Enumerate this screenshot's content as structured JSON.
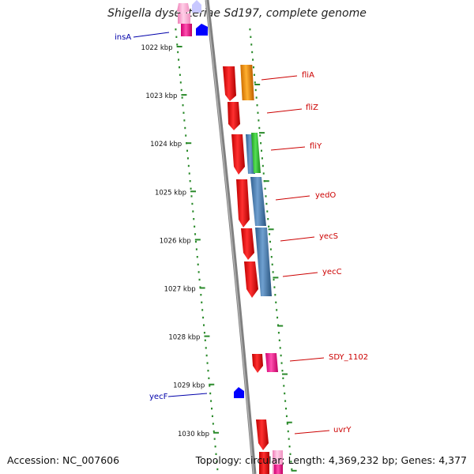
{
  "title": "Shigella dysenteriae Sd197, complete genome",
  "accession": "Accession: NC_007606",
  "topology": "Topology: circular; Length: 4,369,232 bp; Genes: 4,377",
  "ticks": [
    "1022 kbp",
    "1023 kbp",
    "1024 kbp",
    "1025 kbp",
    "1026 kbp",
    "1027 kbp",
    "1028 kbp",
    "1029 kbp",
    "1030 kbp"
  ],
  "gene_labels": {
    "insA": "insA",
    "fliA": "fliA",
    "fliZ": "fliZ",
    "fliY": "fliY",
    "yedO": "yedO",
    "yecS": "yecS",
    "yecC": "yecC",
    "SDY_1102": "SDY_1102",
    "yecF": "yecF",
    "uvrY": "uvrY"
  },
  "colors": {
    "backbone": "#808080",
    "tick": "#2a8a2a",
    "dots": "#2a8a2a",
    "red_gene": "#ff0000",
    "orange_gene": "#ff9900",
    "blue_gene": "#4682b4",
    "green_gene": "#33cc33",
    "magenta_gene": "#ff1493",
    "pink_gene": "#ffaad4",
    "navy_gene": "#0000ff",
    "red_label": "#cc0000",
    "blue_label": "#0000aa"
  }
}
